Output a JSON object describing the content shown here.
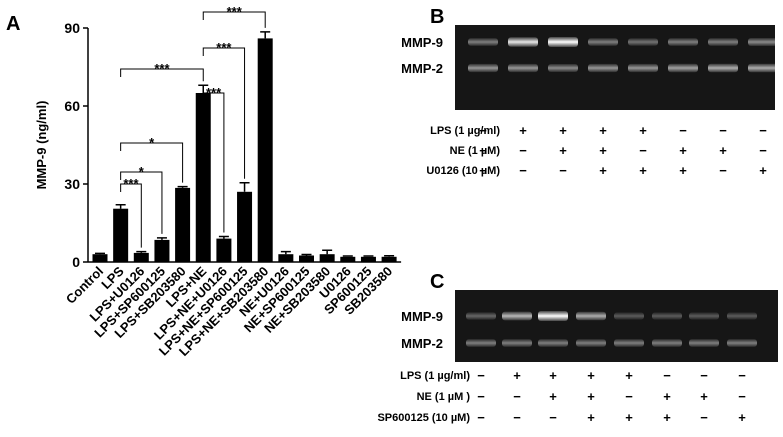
{
  "chart_data": {
    "type": "bar",
    "panel": "A",
    "ylabel": "MMP-9 (ng/ml)",
    "categories": [
      "Control",
      "LPS",
      "LPS+U0126",
      "LPS+SP600125",
      "LPS+SB203580",
      "LPS+NE",
      "LPS+NE+U0126",
      "LPS+NE+SP600125",
      "LPS+NE+SB203580",
      "NE+U0126",
      "NE+SP600125",
      "NE+SB203580",
      "U0126",
      "SP600125",
      "SB203580"
    ],
    "values": [
      3,
      20.5,
      3.5,
      8.5,
      28.5,
      65,
      9,
      27,
      86,
      3,
      2.5,
      3,
      2,
      2,
      2
    ],
    "errors": [
      0.3,
      1.5,
      0.5,
      0.8,
      0.5,
      3,
      0.8,
      3.5,
      2.5,
      1,
      0.4,
      1.5,
      0.3,
      0.3,
      0.4
    ],
    "color": "#000000",
    "ylim": [
      0,
      90
    ],
    "yticks": [
      0,
      30,
      60,
      90
    ],
    "grid": false,
    "annotations": [
      {
        "label": "***",
        "between": [
          "LPS",
          "LPS+U0126"
        ]
      },
      {
        "label": "*",
        "between": [
          "LPS",
          "LPS+SP600125"
        ]
      },
      {
        "label": "*",
        "between": [
          "LPS",
          "LPS+SB203580"
        ]
      },
      {
        "label": "***",
        "between": [
          "LPS",
          "LPS+NE"
        ]
      },
      {
        "label": "***",
        "between": [
          "LPS+NE",
          "LPS+NE+U0126"
        ]
      },
      {
        "label": "***",
        "between": [
          "LPS+NE",
          "LPS+NE+SP600125"
        ]
      },
      {
        "label": "***",
        "between": [
          "LPS+NE",
          "LPS+NE+SB203580"
        ]
      }
    ]
  },
  "gels": [
    {
      "panel": "B",
      "bands": [
        "MMP-9",
        "MMP-2"
      ],
      "rows": [
        {
          "label": "LPS (1 µg/ml)",
          "signs": [
            "−",
            "+",
            "+",
            "+",
            "+",
            "−",
            "−",
            "−"
          ]
        },
        {
          "label": "NE (1 µM)",
          "signs": [
            "−",
            "−",
            "+",
            "+",
            "−",
            "+",
            "+",
            "−"
          ]
        },
        {
          "label": "U0126 (10 µM)",
          "signs": [
            "−",
            "−",
            "−",
            "+",
            "+",
            "+",
            "−",
            "+"
          ]
        }
      ]
    },
    {
      "panel": "C",
      "bands": [
        "MMP-9",
        "MMP-2"
      ],
      "rows": [
        {
          "label": "LPS (1 µg/ml)",
          "signs": [
            "−",
            "+",
            "+",
            "+",
            "+",
            "−",
            "−",
            "−"
          ]
        },
        {
          "label": "NE (1 µM )",
          "signs": [
            "−",
            "−",
            "+",
            "+",
            "−",
            "+",
            "+",
            "−"
          ]
        },
        {
          "label": "SP600125 (10 µM)",
          "signs": [
            "−",
            "−",
            "−",
            "+",
            "+",
            "+",
            "−",
            "+"
          ]
        }
      ]
    }
  ]
}
